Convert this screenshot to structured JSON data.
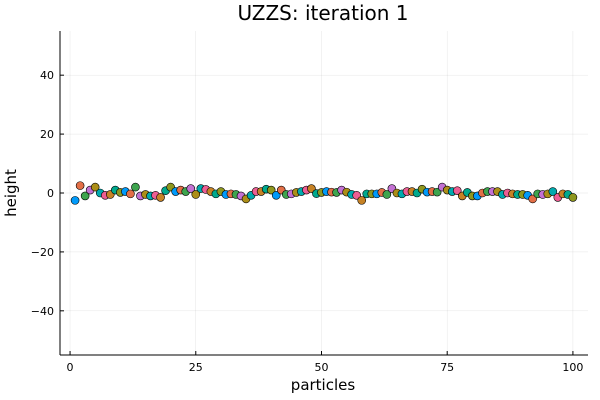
{
  "chart_data": {
    "type": "scatter",
    "title": "UZZS: iteration 1",
    "xlabel": "particles",
    "ylabel": "height",
    "xlim": [
      -2,
      103
    ],
    "ylim": [
      -55,
      55
    ],
    "xticks": [
      0,
      25,
      50,
      75,
      100
    ],
    "yticks": [
      -40,
      -20,
      0,
      20,
      40
    ],
    "xtick_labels": [
      "0",
      "25",
      "50",
      "75",
      "100"
    ],
    "ytick_labels": [
      "−40",
      "−20",
      "0",
      "20",
      "40"
    ],
    "grid": true,
    "legend": "none",
    "palette": [
      "#009AFA",
      "#E36F47",
      "#3EA44E",
      "#C371D2",
      "#AC8E18",
      "#00AAAE",
      "#ED5E93",
      "#C68225",
      "#00A98D",
      "#8E971E"
    ],
    "x": [
      1,
      2,
      3,
      4,
      5,
      6,
      7,
      8,
      9,
      10,
      11,
      12,
      13,
      14,
      15,
      16,
      17,
      18,
      19,
      20,
      21,
      22,
      23,
      24,
      25,
      26,
      27,
      28,
      29,
      30,
      31,
      32,
      33,
      34,
      35,
      36,
      37,
      38,
      39,
      40,
      41,
      42,
      43,
      44,
      45,
      46,
      47,
      48,
      49,
      50,
      51,
      52,
      53,
      54,
      55,
      56,
      57,
      58,
      59,
      60,
      61,
      62,
      63,
      64,
      65,
      66,
      67,
      68,
      69,
      70,
      71,
      72,
      73,
      74,
      75,
      76,
      77,
      78,
      79,
      80,
      81,
      82,
      83,
      84,
      85,
      86,
      87,
      88,
      89,
      90,
      91,
      92,
      93,
      94,
      95,
      96,
      97,
      98,
      99,
      100
    ],
    "y": [
      -2.5,
      2.5,
      -1,
      1,
      2,
      0,
      -0.8,
      -0.5,
      1,
      0.2,
      0.5,
      -0.3,
      2,
      -1,
      -0.5,
      -1,
      -0.8,
      -1.5,
      0.8,
      2,
      0.5,
      1,
      0.5,
      1.5,
      -0.5,
      1.5,
      1.2,
      0.5,
      -0.3,
      0.5,
      -0.5,
      -0.3,
      -0.5,
      -1,
      -2,
      -0.8,
      0.5,
      0.5,
      1.3,
      1,
      -0.8,
      1,
      -0.5,
      -0.3,
      0.2,
      0.5,
      1,
      1.5,
      -0.2,
      0.2,
      0.5,
      0.3,
      0.2,
      1,
      0.3,
      -0.5,
      -0.8,
      -2.5,
      -0.3,
      -0.3,
      -0.3,
      0.2,
      -0.5,
      1.5,
      0,
      -0.3,
      0.5,
      0.5,
      0,
      1.3,
      0.3,
      0.5,
      0.3,
      2,
      1,
      0.5,
      0.8,
      -1,
      0.2,
      -1,
      -1,
      0,
      0.5,
      0.5,
      0.5,
      -0.5,
      0,
      -0.3,
      -0.5,
      -0.5,
      -0.8,
      -2,
      -0.3,
      -0.5,
      -0.3,
      0.5,
      -1.5,
      -0.3,
      -0.5,
      -1.5
    ]
  }
}
